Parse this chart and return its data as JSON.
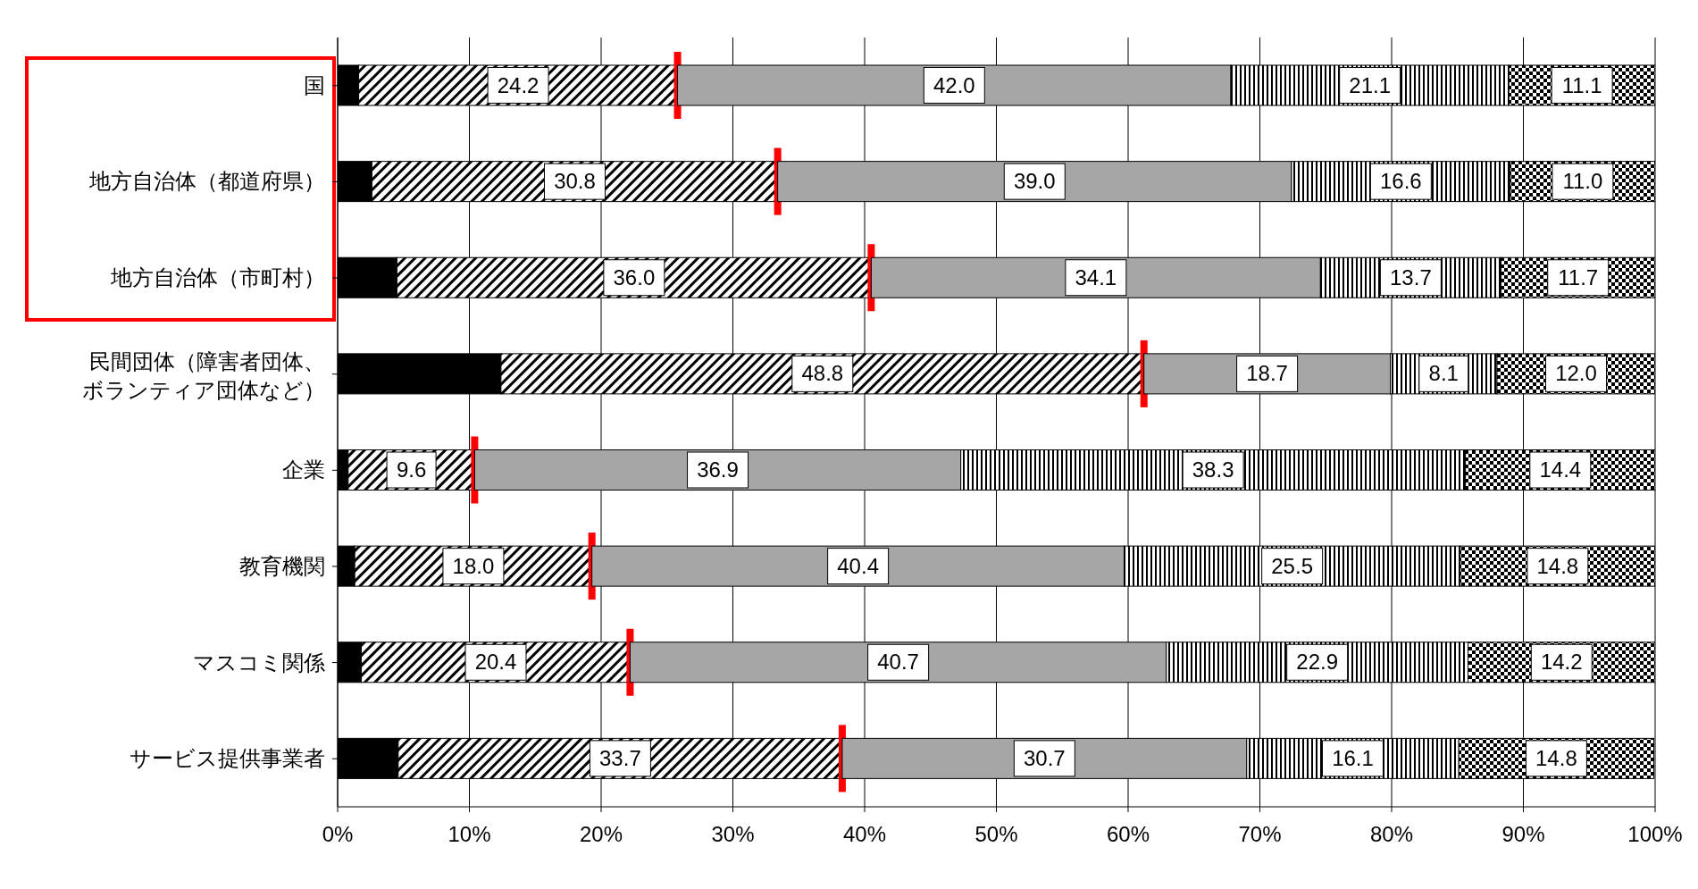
{
  "chart_data": {
    "type": "bar",
    "orientation": "horizontal",
    "stacked": true,
    "grid": "x",
    "categories": [
      "国",
      "地方自治体（都道府県）",
      "地方自治体（市町村）",
      "民間団体（障害者団体、ボランティア団体など）",
      "企業",
      "教育機関",
      "マスコミ関係",
      "サービス提供事業者"
    ],
    "series": [
      {
        "color": "#000000",
        "values": [
          1.6,
          2.6,
          4.5,
          12.4,
          0.8,
          1.3,
          1.8,
          4.6
        ]
      },
      {
        "color": "#000000",
        "values": [
          24.2,
          30.8,
          36.0,
          48.8,
          9.6,
          18.0,
          20.4,
          33.7
        ],
        "value_labels": [
          "24.2",
          "30.8",
          "36.0",
          "48.8",
          "9.6",
          "18.0",
          "20.4",
          "33.7"
        ]
      },
      {
        "color": "#a6a6a6",
        "values": [
          42.0,
          39.0,
          34.1,
          18.7,
          36.9,
          40.4,
          40.7,
          30.7
        ],
        "value_labels": [
          "42.0",
          "39.0",
          "34.1",
          "18.7",
          "36.9",
          "40.4",
          "40.7",
          "30.7"
        ]
      },
      {
        "color": "#000000",
        "values": [
          21.1,
          16.6,
          13.7,
          8.1,
          38.3,
          25.5,
          22.9,
          16.1
        ],
        "value_labels": [
          "21.1",
          "16.6",
          "13.7",
          "8.1",
          "38.3",
          "25.5",
          "22.9",
          "16.1"
        ]
      },
      {
        "color": "#000000",
        "values": [
          11.1,
          11.0,
          11.7,
          12.0,
          14.4,
          14.8,
          14.2,
          14.8
        ],
        "value_labels": [
          "11.1",
          "11.0",
          "11.7",
          "12.0",
          "14.4",
          "14.8",
          "14.2",
          "14.8"
        ]
      }
    ],
    "xlim": [
      0,
      100
    ],
    "xticks": [
      {
        "value": 0,
        "label": "0%"
      },
      {
        "value": 10,
        "label": "10%"
      },
      {
        "value": 20,
        "label": "20%"
      },
      {
        "value": 30,
        "label": "30%"
      },
      {
        "value": 40,
        "label": "40%"
      },
      {
        "value": 50,
        "label": "50%"
      },
      {
        "value": 60,
        "label": "60%"
      },
      {
        "value": 70,
        "label": "70%"
      },
      {
        "value": 80,
        "label": "80%"
      },
      {
        "value": 90,
        "label": "90%"
      },
      {
        "value": 100,
        "label": "100%"
      }
    ]
  }
}
